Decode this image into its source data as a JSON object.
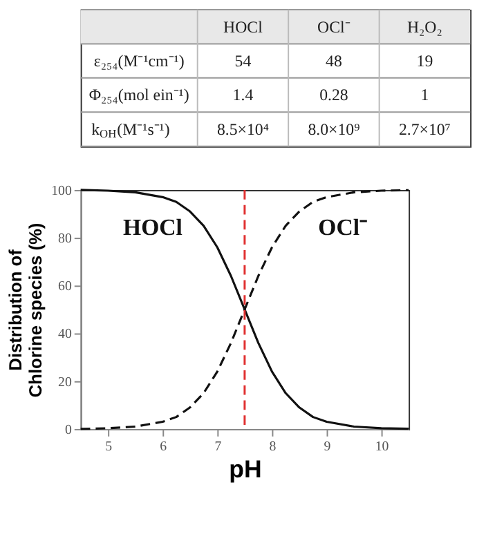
{
  "chart_data": [
    {
      "type": "other",
      "categories": [
        "HOCl",
        "OCl⁻",
        "H₂O₂"
      ],
      "y_categories": [
        "ε₂₅₄(M⁻¹cm⁻¹)",
        "Φ₂₅₄(mol  ein⁻¹)",
        "k$_{OH}$(M⁻¹s⁻¹)"
      ],
      "cell_labels": [
        [
          "54",
          "48",
          "19"
        ],
        [
          "1.4",
          "0.28",
          "1"
        ],
        [
          "8.5×10⁴",
          "8.0×10⁹",
          "2.7×10⁷"
        ]
      ]
    },
    {
      "type": "line",
      "xlabel": "pH",
      "ylabel": "Distribution of Chlorine species (%)",
      "x": [
        4.5,
        5,
        5.5,
        6,
        6.25,
        6.5,
        6.75,
        7,
        7.25,
        7.5,
        7.75,
        8,
        8.25,
        8.5,
        8.75,
        9,
        9.5,
        10,
        10.5
      ],
      "series": [
        {
          "name": "HOCl",
          "color": "#111111",
          "line_style": "solid",
          "values": [
            100,
            99.7,
            99,
            97,
            95,
            91,
            85,
            76,
            64,
            50,
            36,
            24,
            15,
            9,
            5,
            3,
            1,
            0.3,
            0.1
          ]
        },
        {
          "name": "OCl⁻",
          "color": "#111111",
          "line_style": "dashed",
          "values": [
            0,
            0.3,
            1,
            3,
            5,
            9,
            15,
            24,
            36,
            50,
            64,
            76,
            85,
            91,
            95,
            97,
            99,
            99.7,
            99.9
          ]
        }
      ],
      "xlim": [
        4.5,
        10.5
      ],
      "xticks": [
        5,
        6,
        7,
        8,
        9,
        10
      ],
      "ylim": [
        0,
        100
      ],
      "yticks": [
        0,
        20,
        40,
        60,
        80,
        100
      ],
      "ref_lines": [
        {
          "axis": "x",
          "value": 7.5,
          "color": "#e03030",
          "line_style": "dashed"
        }
      ],
      "grid": false,
      "legend": false,
      "marker": "none"
    }
  ]
}
